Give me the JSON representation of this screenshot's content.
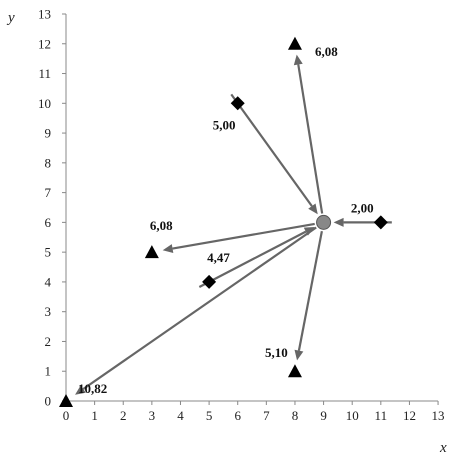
{
  "chart_data": {
    "type": "scatter",
    "xlabel": "x",
    "ylabel": "y",
    "xlim": [
      0,
      13
    ],
    "ylim": [
      0,
      13
    ],
    "xticks": [
      "0",
      "1",
      "2",
      "3",
      "4",
      "5",
      "6",
      "7",
      "8",
      "9",
      "10",
      "11",
      "12",
      "13"
    ],
    "yticks": [
      "0",
      "1",
      "2",
      "3",
      "4",
      "5",
      "6",
      "7",
      "8",
      "9",
      "10",
      "11",
      "12",
      "13"
    ],
    "grid": false,
    "center": {
      "x": 9,
      "y": 6
    },
    "series": [
      {
        "marker": "triangle",
        "points": [
          {
            "x": 8,
            "y": 12,
            "label": "6,08"
          },
          {
            "x": 3,
            "y": 5,
            "label": "6,08"
          },
          {
            "x": 8,
            "y": 1,
            "label": "5,10"
          },
          {
            "x": 0,
            "y": 0,
            "label": "10,82"
          }
        ]
      },
      {
        "marker": "diamond",
        "points": [
          {
            "x": 6,
            "y": 10,
            "label": "5,00"
          },
          {
            "x": 11,
            "y": 6,
            "label": "2,00"
          },
          {
            "x": 5,
            "y": 4,
            "label": "4,47"
          }
        ]
      }
    ],
    "colors": {
      "arrow": "#666666",
      "center": "#888888",
      "marker": "#000000"
    }
  }
}
